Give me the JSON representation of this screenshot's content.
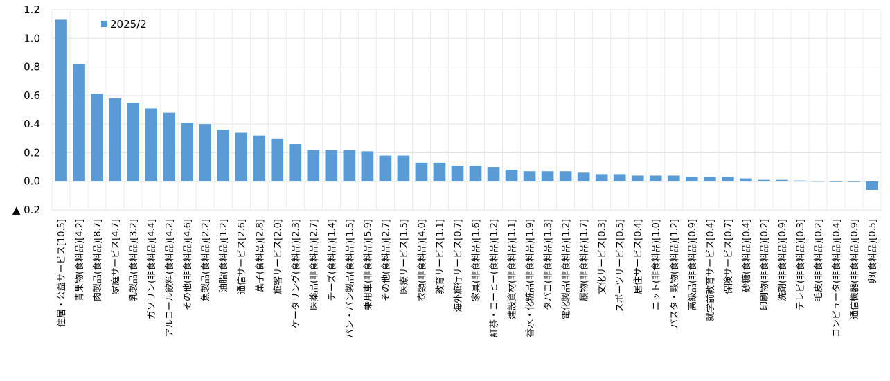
{
  "chart_data": {
    "type": "bar",
    "legend": {
      "label": "2025/2",
      "position": "top-left",
      "color": "#5b9bd5"
    },
    "bar_color": "#5b9bd5",
    "grid": true,
    "ylim": [
      -0.2,
      1.2
    ],
    "yticks": [
      {
        "value": 1.2,
        "label": "1.2"
      },
      {
        "value": 1.0,
        "label": "1.0"
      },
      {
        "value": 0.8,
        "label": "0.8"
      },
      {
        "value": 0.6,
        "label": "0.6"
      },
      {
        "value": 0.4,
        "label": "0.4"
      },
      {
        "value": 0.2,
        "label": "0.2"
      },
      {
        "value": 0.0,
        "label": "0.0"
      },
      {
        "value": -0.2,
        "label": "▲ 0.2"
      }
    ],
    "categories": [
      "住居・公益サービス[10.5]",
      "青果物(食料品)[4.2]",
      "肉製品(食料品)[8.7]",
      "家庭サービス[4.7]",
      "乳製品(食料品)[3.2]",
      "ガソリン(非食料品)[4.4]",
      "アルコール飲料(食料品)[4.2]",
      "その他(非食料品)[4.6]",
      "魚製品(食料品)[2.2]",
      "油脂(食料品)[1.2]",
      "通信サービス[2.6]",
      "菓子(食料品)[2.8]",
      "旅客サービス[2.0]",
      "ケータリング(食料品)[2.3]",
      "医薬品(非食料品)[2.7]",
      "チーズ(食料品)[1.4]",
      "パン・パン製品(食料品)[1.5]",
      "乗用車(非食料品)[5.9]",
      "その他(食料品)[2.7]",
      "医療サービス[1.5]",
      "衣類(非食料品)[4.0]",
      "教育サービス[1.1]",
      "海外旅行サービス[0.7]",
      "家具(非食料品)[1.6]",
      "紅茶・コーヒー(食料品)[1.2]",
      "建設資材(非食料品)[1.1]",
      "香水・化粧品(非食料品)[1.9]",
      "タバコ(非食料品)[1.3]",
      "電化製品(非食料品)[1.2]",
      "履物(非食料品)[1.7]",
      "文化サービス[0.3]",
      "スポーツサービス[0.5]",
      "居住サービス[0.4]",
      "ニット(非食料品)[1.0]",
      "パスタ・穀物(食料品)[1.2]",
      "高級品(非食料品)[0.9]",
      "就学前教育サービス[0.4]",
      "保険サービス[0.7]",
      "砂糖(食料品)[0.4]",
      "印刷物(非食料品)[0.2]",
      "洗剤(非食料品)[0.9]",
      "テレビ(非食料品)[0.3]",
      "毛皮(非食料品)[0.2]",
      "コンピュータ(非食料品)[0.4]",
      "通信機器(非食料品)[0.9]",
      "卵(食料品)[0.5]"
    ],
    "series": [
      {
        "name": "2025/2",
        "values": [
          1.13,
          0.82,
          0.61,
          0.58,
          0.55,
          0.51,
          0.48,
          0.41,
          0.4,
          0.36,
          0.34,
          0.32,
          0.3,
          0.26,
          0.22,
          0.22,
          0.22,
          0.21,
          0.18,
          0.18,
          0.13,
          0.13,
          0.11,
          0.11,
          0.1,
          0.08,
          0.07,
          0.07,
          0.07,
          0.06,
          0.05,
          0.05,
          0.04,
          0.04,
          0.04,
          0.03,
          0.03,
          0.03,
          0.02,
          0.01,
          0.01,
          0.005,
          0.0,
          -0.005,
          -0.005,
          -0.06
        ]
      }
    ]
  }
}
